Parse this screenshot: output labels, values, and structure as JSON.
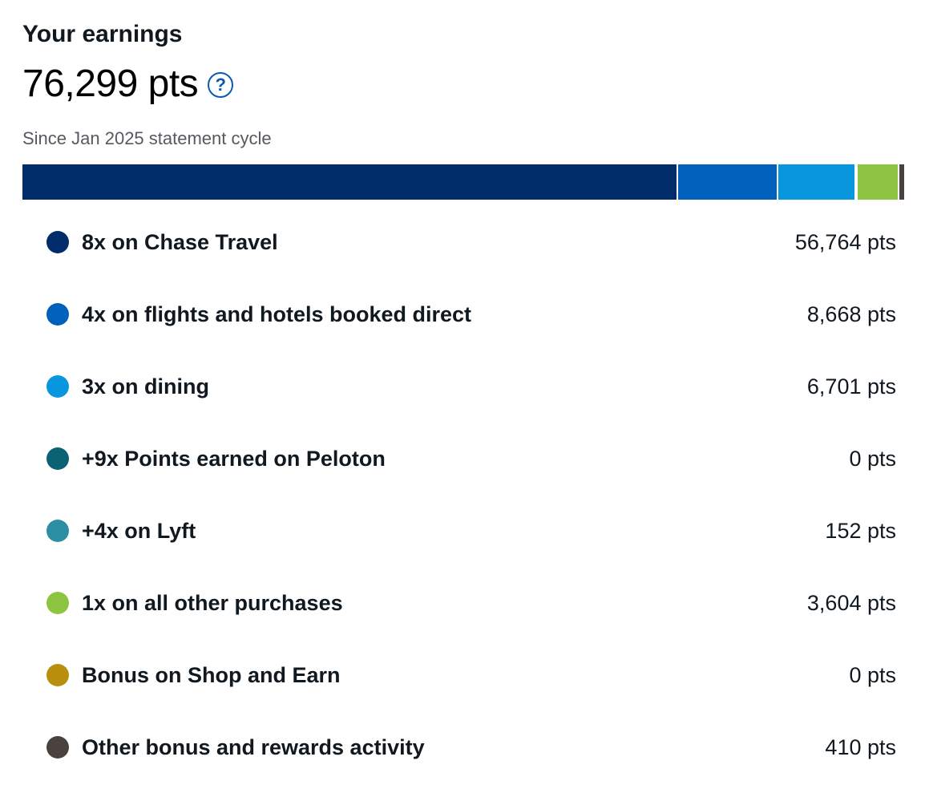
{
  "header": {
    "title": "Your earnings",
    "total": "76,299 pts",
    "help_icon": "question-circle-icon",
    "help_glyph": "?",
    "since": "Since Jan 2025 statement cycle"
  },
  "breakdown_bar": {
    "segments": [
      {
        "name": "8x on Chase Travel",
        "points": 56764,
        "color": "#002d6a"
      },
      {
        "name": "4x on flights and hotels booked direct",
        "points": 8668,
        "color": "#0060bb"
      },
      {
        "name": "3x on dining",
        "points": 6701,
        "color": "#0896de"
      },
      {
        "name": "+9x Points earned on Peloton",
        "points": 0,
        "color": "#0b6273"
      },
      {
        "name": "+4x on Lyft",
        "points": 152,
        "color": "#2b8ea3"
      },
      {
        "name": "1x on all other purchases",
        "points": 3604,
        "color": "#8dc543"
      },
      {
        "name": "Bonus on Shop and Earn",
        "points": 0,
        "color": "#b8900e"
      },
      {
        "name": "Other bonus and rewards activity",
        "points": 410,
        "color": "#4a423f"
      }
    ]
  },
  "categories": [
    {
      "label": "8x on Chase Travel",
      "value": "56,764 pts",
      "color": "#002d6a"
    },
    {
      "label": "4x on flights and hotels booked direct",
      "value": "8,668 pts",
      "color": "#0060bb"
    },
    {
      "label": "3x on dining",
      "value": "6,701 pts",
      "color": "#0896de"
    },
    {
      "label": "+9x Points earned on Peloton",
      "value": "0 pts",
      "color": "#0b6273"
    },
    {
      "label": "+4x on Lyft",
      "value": "152 pts",
      "color": "#2b8ea3"
    },
    {
      "label": "1x on all other purchases",
      "value": "3,604 pts",
      "color": "#8dc543"
    },
    {
      "label": "Bonus on Shop and Earn",
      "value": "0 pts",
      "color": "#b8900e"
    },
    {
      "label": "Other bonus and rewards activity",
      "value": "410 pts",
      "color": "#4a423f"
    }
  ]
}
